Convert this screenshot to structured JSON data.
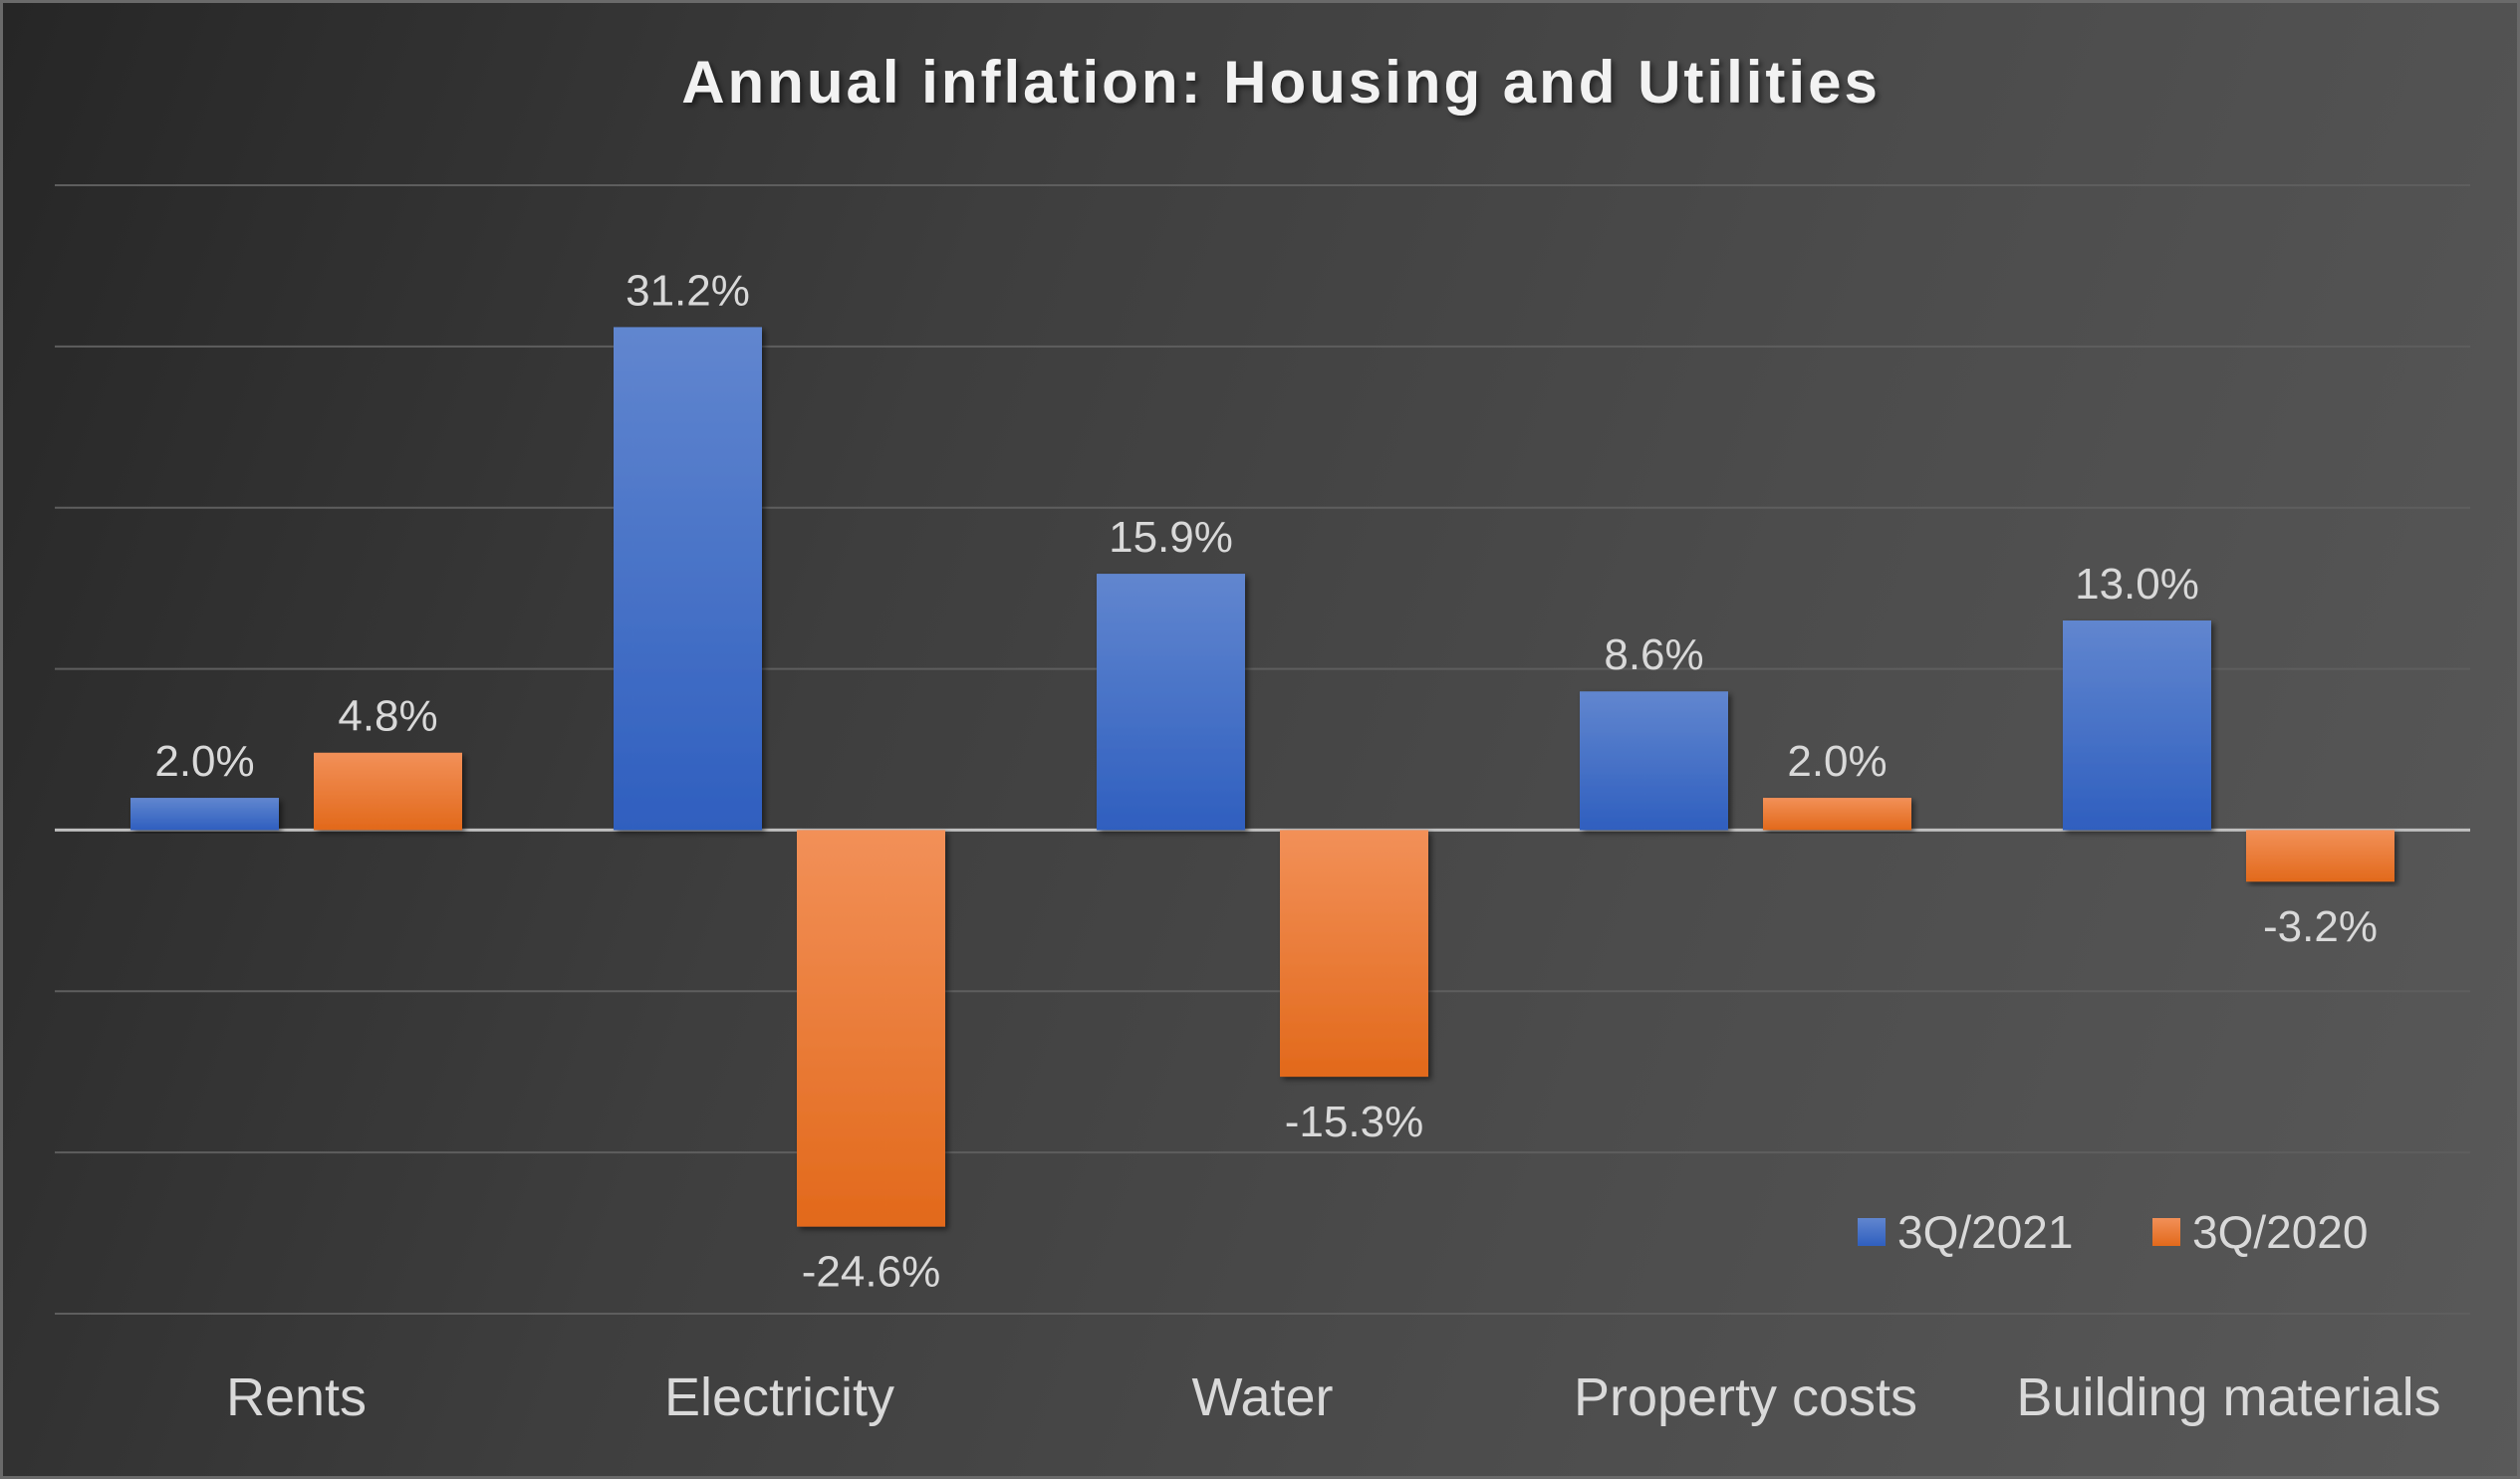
{
  "chart_data": {
    "type": "bar",
    "title": "Annual inflation: Housing and Utilities",
    "categories": [
      "Rents",
      "Electricity",
      "Water",
      "Property costs",
      "Building materials"
    ],
    "series": [
      {
        "name": "3Q/2021",
        "values": [
          2.0,
          31.2,
          15.9,
          8.6,
          13.0
        ],
        "labels": [
          "2.0%",
          "31.2%",
          "15.9%",
          "8.6%",
          "13.0%"
        ],
        "color": "#4472C4"
      },
      {
        "name": "3Q/2020",
        "values": [
          4.8,
          -24.6,
          -15.3,
          2.0,
          -3.2
        ],
        "labels": [
          "4.8%",
          "-24.6%",
          "-15.3%",
          "2.0%",
          "-3.2%"
        ],
        "color": "#ED7D31"
      }
    ],
    "unit": "%",
    "ylim": [
      -30,
      40
    ],
    "ytick_step": 10,
    "grid": true,
    "yaxis_labels_shown": false,
    "legend_position": "bottom-right",
    "background": "#3f3f3f"
  }
}
